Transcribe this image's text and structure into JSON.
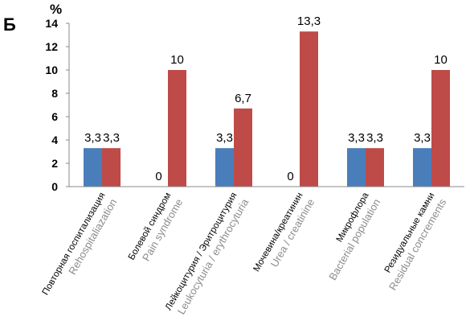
{
  "panel_label": "Б",
  "chart_data": {
    "type": "bar",
    "unit_label": "%",
    "ylim": [
      0,
      14
    ],
    "yticks": [
      0,
      2,
      4,
      6,
      8,
      10,
      12,
      14
    ],
    "grid": false,
    "legend": "none",
    "categories": [
      {
        "ru": "Повторная госпитализация",
        "en": "Rehospitaliazation"
      },
      {
        "ru": "Болевой синдром",
        "en": "Pain syndrome"
      },
      {
        "ru": "Лейкоцитурия / Эритроцитурия",
        "en": "Leukocyturia / erythrocyturia"
      },
      {
        "ru": "Мочевина/креатинин",
        "en": "Urea / creatinine"
      },
      {
        "ru": "Микрофлора",
        "en": "Bacterial population"
      },
      {
        "ru": "Резидуальные камни",
        "en": "Residual concrements"
      }
    ],
    "series": [
      {
        "color": "#4a7ebb",
        "values": [
          3.3,
          0,
          3.3,
          0,
          3.3,
          3.3
        ],
        "labels": [
          "3,3",
          "0",
          "3,3",
          "0",
          "3,3",
          "3,3"
        ]
      },
      {
        "color": "#be4b48",
        "values": [
          3.3,
          10,
          6.7,
          13.3,
          3.3,
          10
        ],
        "labels": [
          "3,3",
          "10",
          "6,7",
          "13,3",
          "3,3",
          "10"
        ]
      }
    ]
  }
}
